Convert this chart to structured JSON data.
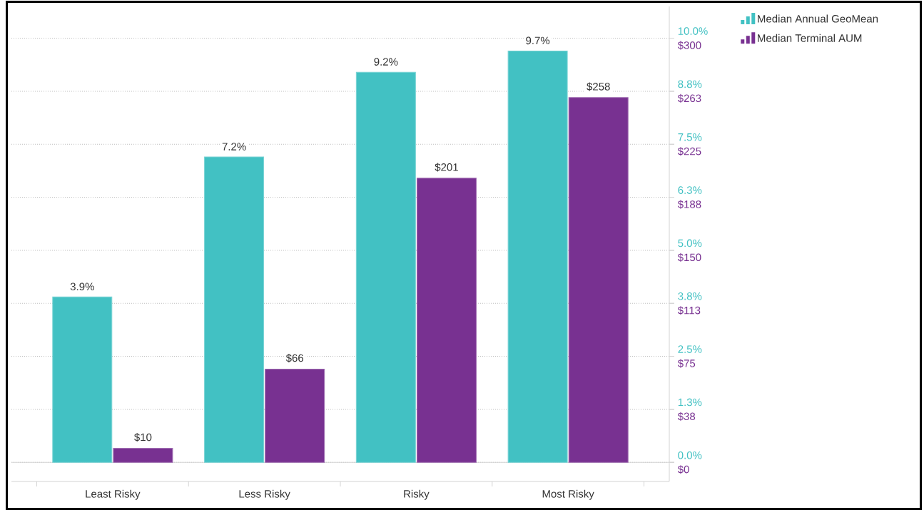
{
  "chart_data": {
    "type": "bar",
    "categories": [
      "Least Risky",
      "Less Risky",
      "Risky",
      "Most Risky"
    ],
    "series": [
      {
        "name": "Median Annual GeoMean",
        "color": "#42c1c3",
        "axis": "y",
        "values": [
          3.9,
          7.2,
          9.2,
          9.7
        ],
        "value_labels": [
          "3.9%",
          "7.2%",
          "9.2%",
          "9.7%"
        ]
      },
      {
        "name": "Median Terminal AUM",
        "color": "#783191",
        "axis": "y2",
        "values": [
          10,
          66,
          201,
          258
        ],
        "value_labels": [
          "$10",
          "$66",
          "$201",
          "$258"
        ]
      }
    ],
    "ylim": [
      -0.45,
      10.75
    ],
    "yticks": [
      {
        "value": 0,
        "label": "0.0%"
      },
      {
        "value": 1.25,
        "label": "1.3%"
      },
      {
        "value": 2.5,
        "label": "2.5%"
      },
      {
        "value": 3.75,
        "label": "3.8%"
      },
      {
        "value": 5,
        "label": "5.0%"
      },
      {
        "value": 6.25,
        "label": "6.3%"
      },
      {
        "value": 7.5,
        "label": "7.5%"
      },
      {
        "value": 8.75,
        "label": "8.8%"
      },
      {
        "value": 10,
        "label": "10.0%"
      }
    ],
    "y2lim": [
      -13.5,
      322.5
    ],
    "y2ticks": [
      {
        "value": 0,
        "label": "$0"
      },
      {
        "value": 37.5,
        "label": "$38"
      },
      {
        "value": 75,
        "label": "$75"
      },
      {
        "value": 112.5,
        "label": "$113"
      },
      {
        "value": 150,
        "label": "$150"
      },
      {
        "value": 187.5,
        "label": "$188"
      },
      {
        "value": 225,
        "label": "$225"
      },
      {
        "value": 262.5,
        "label": "$263"
      },
      {
        "value": 300,
        "label": "$300"
      }
    ],
    "grid": "y",
    "legend": "top right"
  }
}
